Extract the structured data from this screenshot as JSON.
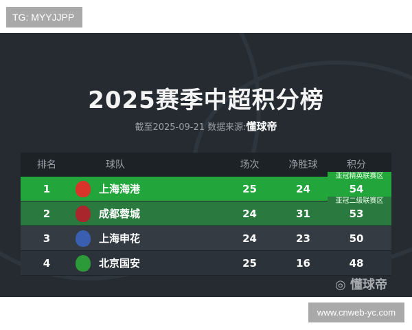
{
  "watermark_top": "TG: MYYJJPP",
  "title": "2025赛季中超积分榜",
  "subtitle_prefix": "截至2025-09-21 数据来源:",
  "subtitle_source": "懂球帝",
  "headers": [
    "排名",
    "球队",
    "场次",
    "净胜球",
    "积分"
  ],
  "rows": [
    {
      "rank": "1",
      "team": "上海海港",
      "played": "25",
      "gd": "24",
      "pts": "54",
      "zone": "亚冠精英联赛区",
      "bg": "#22a53a",
      "logo": "#d8342a"
    },
    {
      "rank": "2",
      "team": "成都蓉城",
      "played": "24",
      "gd": "31",
      "pts": "53",
      "zone": "亚冠二级联赛区",
      "bg": "#2a7a3f",
      "logo": "#a8262c"
    },
    {
      "rank": "3",
      "team": "上海申花",
      "played": "24",
      "gd": "23",
      "pts": "50",
      "bg": "#343b43",
      "logo": "#3a5fb0"
    },
    {
      "rank": "4",
      "team": "北京国安",
      "played": "25",
      "gd": "16",
      "pts": "48",
      "bg": "#2b3239",
      "logo": "#2d9a3a"
    }
  ],
  "brand_watermark": "懂球帝",
  "site": "www.cnweb-yc.com"
}
